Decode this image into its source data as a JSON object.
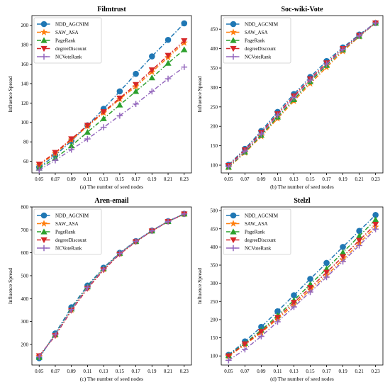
{
  "chart_data": [
    {
      "type": "line",
      "title": "Filmtrust",
      "xlabel": "(a) The number of seed nodes",
      "ylabel": "Influence Spread",
      "x": [
        0.05,
        0.07,
        0.09,
        0.11,
        0.13,
        0.15,
        0.17,
        0.19,
        0.21,
        0.23
      ],
      "xticks": [
        "0.05",
        "0.07",
        "0.09",
        "0.11",
        "0.13",
        "0.15",
        "0.17",
        "0.19",
        "0.21",
        "0.23"
      ],
      "ylim": [
        48,
        210
      ],
      "yticks": [
        60,
        80,
        100,
        120,
        140,
        160,
        180,
        200
      ],
      "legend": "upper left",
      "series": [
        {
          "name": "NDD_AGCNIM",
          "values": [
            54,
            66,
            81,
            97,
            114,
            132,
            150,
            168,
            185,
            202
          ]
        },
        {
          "name": "SAW_ASA",
          "values": [
            56,
            68,
            82,
            96,
            110,
            124,
            137,
            152,
            167,
            182
          ]
        },
        {
          "name": "PageRank",
          "values": [
            53,
            63,
            76,
            90,
            104,
            118,
            132,
            146,
            161,
            175
          ]
        },
        {
          "name": "degreeDiscount",
          "values": [
            57,
            69,
            83,
            97,
            111,
            125,
            139,
            154,
            169,
            184
          ]
        },
        {
          "name": "NCVoteRank",
          "values": [
            51,
            61,
            72,
            83,
            95,
            107,
            119,
            132,
            145,
            157
          ]
        }
      ]
    },
    {
      "type": "line",
      "title": "Soc-wiki-Vote",
      "xlabel": "(b) The number of seed nodes",
      "ylabel": "Influence Spread",
      "x": [
        0.05,
        0.07,
        0.09,
        0.11,
        0.13,
        0.15,
        0.17,
        0.19,
        0.21,
        0.23
      ],
      "xticks": [
        "0.05",
        "0.07",
        "0.09",
        "0.11",
        "0.13",
        "0.15",
        "0.17",
        "0.19",
        "0.21",
        "0.23"
      ],
      "ylim": [
        80,
        485
      ],
      "yticks": [
        100,
        150,
        200,
        250,
        300,
        350,
        400,
        450
      ],
      "legend": "upper left",
      "series": [
        {
          "name": "NDD_AGCNIM",
          "values": [
            101,
            142,
            188,
            237,
            283,
            327,
            368,
            403,
            436,
            466
          ]
        },
        {
          "name": "SAW_ASA",
          "values": [
            94,
            132,
            174,
            220,
            265,
            310,
            352,
            393,
            431,
            466
          ]
        },
        {
          "name": "PageRank",
          "values": [
            95,
            134,
            177,
            224,
            269,
            315,
            357,
            397,
            432,
            466
          ]
        },
        {
          "name": "degreeDiscount",
          "values": [
            99,
            139,
            184,
            232,
            278,
            322,
            363,
            400,
            434,
            466
          ]
        },
        {
          "name": "NCVoteRank",
          "values": [
            96,
            136,
            180,
            228,
            274,
            319,
            360,
            398,
            433,
            466
          ]
        }
      ]
    },
    {
      "type": "line",
      "title": "Aren-email",
      "xlabel": "(c) The number of seed nodes",
      "ylabel": "Influence Spread",
      "x": [
        0.05,
        0.07,
        0.09,
        0.11,
        0.13,
        0.15,
        0.17,
        0.19,
        0.21,
        0.23
      ],
      "xticks": [
        "0.05",
        "0.07",
        "0.09",
        "0.11",
        "0.13",
        "0.15",
        "0.17",
        "0.19",
        "0.21",
        "0.23"
      ],
      "ylim": [
        110,
        800
      ],
      "yticks": [
        200,
        300,
        400,
        500,
        600,
        700,
        800
      ],
      "legend": "upper left",
      "series": [
        {
          "name": "NDD_AGCNIM",
          "values": [
            140,
            248,
            362,
            457,
            535,
            600,
            651,
            697,
            738,
            770
          ]
        },
        {
          "name": "SAW_ASA",
          "values": [
            148,
            240,
            350,
            447,
            528,
            596,
            649,
            696,
            737,
            769
          ]
        },
        {
          "name": "PageRank",
          "values": [
            144,
            244,
            355,
            452,
            531,
            598,
            650,
            696,
            737,
            770
          ]
        },
        {
          "name": "degreeDiscount",
          "values": [
            150,
            238,
            348,
            444,
            525,
            594,
            648,
            695,
            736,
            769
          ]
        },
        {
          "name": "NCVoteRank",
          "values": [
            146,
            242,
            352,
            449,
            529,
            597,
            650,
            696,
            737,
            770
          ]
        }
      ]
    },
    {
      "type": "line",
      "title": "Stelzl",
      "xlabel": "(d) The number of seed nodes",
      "ylabel": "Influence Spread",
      "x": [
        0.05,
        0.07,
        0.09,
        0.11,
        0.13,
        0.15,
        0.17,
        0.19,
        0.21,
        0.23
      ],
      "xticks": [
        "0.05",
        "0.07",
        "0.09",
        "0.11",
        "0.13",
        "0.15",
        "0.17",
        "0.19",
        "0.21",
        "0.23"
      ],
      "ylim": [
        75,
        510
      ],
      "yticks": [
        100,
        150,
        200,
        250,
        300,
        350,
        400,
        450,
        500
      ],
      "legend": "upper left",
      "series": [
        {
          "name": "NDD_AGCNIM",
          "values": [
            103,
            140,
            180,
            223,
            267,
            312,
            356,
            400,
            444,
            488
          ]
        },
        {
          "name": "SAW_ASA",
          "values": [
            99,
            131,
            164,
            202,
            241,
            282,
            322,
            365,
            410,
            455
          ]
        },
        {
          "name": "PageRank",
          "values": [
            101,
            135,
            171,
            211,
            253,
            297,
            340,
            385,
            430,
            475
          ]
        },
        {
          "name": "degreeDiscount",
          "values": [
            100,
            133,
            167,
            206,
            247,
            288,
            330,
            373,
            418,
            462
          ]
        },
        {
          "name": "NCVoteRank",
          "values": [
            88,
            118,
            154,
            194,
            235,
            276,
            317,
            360,
            404,
            449
          ]
        }
      ]
    }
  ],
  "styles": {
    "colors": [
      "#1f77b4",
      "#ff7f0e",
      "#2ca02c",
      "#d62728",
      "#9467bd"
    ],
    "markers": [
      "circle",
      "star",
      "triangle-up",
      "triangle-down",
      "plus"
    ]
  }
}
